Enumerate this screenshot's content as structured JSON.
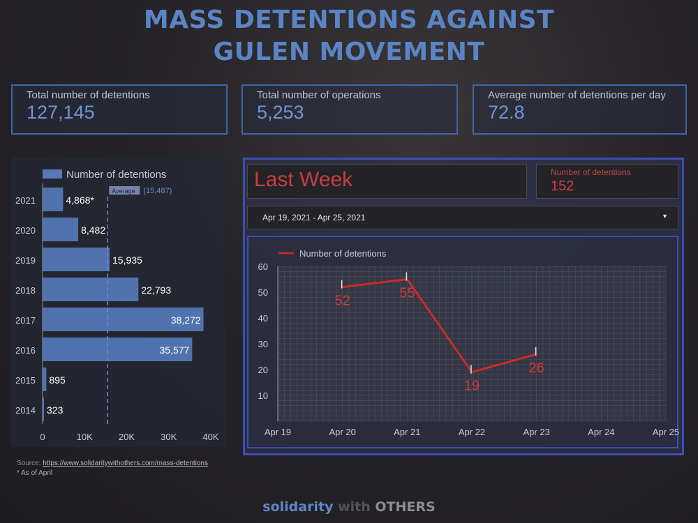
{
  "title": [
    "MASS DETENTIONS AGAINST",
    "GULEN MOVEMENT"
  ],
  "kpis": [
    {
      "label": "Total number of detentions",
      "value": "127,145"
    },
    {
      "label": "Total number of operations",
      "value": "5,253"
    },
    {
      "label": "Average number of detentions per day",
      "value": "72.8"
    }
  ],
  "last_week": {
    "title": "Last Week",
    "count_label": "Number of detentions",
    "count_value": "152",
    "date_range": "Apr 19, 2021 - Apr 25, 2021",
    "dropdown_icon": "caret-down-icon"
  },
  "chart_data": [
    {
      "type": "bar",
      "orientation": "horizontal",
      "legend": "Number of detentions",
      "legend_position": "top",
      "categories": [
        "2021",
        "2020",
        "2019",
        "2018",
        "2017",
        "2016",
        "2015",
        "2014"
      ],
      "values": [
        4868,
        8482,
        15935,
        22793,
        38272,
        35577,
        895,
        323
      ],
      "value_labels": [
        "4,868*",
        "8,482",
        "15,935",
        "22,793",
        "38,272",
        "35,577",
        "895",
        "323"
      ],
      "xlim": [
        0,
        40000
      ],
      "x_ticks": [
        "0",
        "10K",
        "20K",
        "30K",
        "40K"
      ],
      "average_line": {
        "label": "Average",
        "value_label": "(15,487)",
        "value": 15487
      },
      "color": "#5579b8"
    },
    {
      "type": "line",
      "legend": "Number of detentions",
      "legend_position": "top-left",
      "x_ticks": [
        "Apr 19",
        "Apr 20",
        "Apr 21",
        "Apr 22",
        "Apr 23",
        "Apr 24",
        "Apr 25"
      ],
      "x": [
        "Apr 20",
        "Apr 21",
        "Apr 22",
        "Apr 23"
      ],
      "y": [
        52,
        55,
        19,
        26
      ],
      "y_ticks": [
        "60",
        "50",
        "40",
        "30",
        "20",
        "10"
      ],
      "ylim": [
        0,
        60
      ],
      "grid": true,
      "color": "#c92b2b"
    }
  ],
  "footer": {
    "source_prefix": "Source: ",
    "source_url": "https://www.solidaritywithothers.com/mass-detentions",
    "note": "* As of April"
  },
  "brand": {
    "part1": "solidarity",
    "part2": " with ",
    "part3": "OTHERS"
  }
}
